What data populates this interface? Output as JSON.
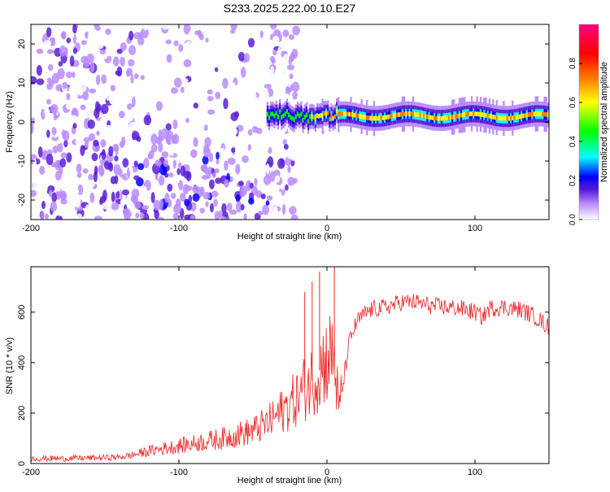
{
  "title": "S233.2025.222.00.10.E27",
  "chart_data": [
    {
      "type": "heatmap",
      "panel": "spectrogram",
      "xlabel": "Height of straight line (km)",
      "ylabel": "Frequency (Hz)",
      "xlim": [
        -200,
        150
      ],
      "ylim": [
        -25,
        25
      ],
      "xticks": [
        "-200",
        "-100",
        "0",
        "100"
      ],
      "yticks": [
        "20",
        "10",
        "0",
        "-10",
        "-20"
      ],
      "colorbar": {
        "label": "Normalized spectral amplitude",
        "range": [
          0,
          1
        ],
        "ticks": [
          "0.0",
          "0.2",
          "0.4",
          "0.6",
          "0.8"
        ],
        "colors": [
          "#ffffff",
          "#b98cff",
          "#5a1fd6",
          "#0000ff",
          "#00ffff",
          "#00ff00",
          "#ffff00",
          "#ff7f00",
          "#ff0000",
          "#ff0080"
        ]
      },
      "features": [
        {
          "name": "main tone",
          "x_range": [
            -40,
            150
          ],
          "frequency_hz": 1.5,
          "amplitude": 0.9
        },
        {
          "name": "broadband noise",
          "x_range": [
            -200,
            -20
          ],
          "frequency_range_hz": [
            -25,
            25
          ],
          "amplitude": 0.2
        }
      ]
    },
    {
      "type": "line",
      "panel": "snr",
      "xlabel": "Height of straight line (km)",
      "ylabel": "SNR (10 * v/v)",
      "xlim": [
        -200,
        150
      ],
      "ylim": [
        0,
        780
      ],
      "xticks": [
        "-200",
        "-100",
        "0",
        "100"
      ],
      "yticks": [
        "0",
        "200",
        "400",
        "600"
      ],
      "color": "#ee2222",
      "series": [
        {
          "name": "SNR",
          "x": [
            -200,
            -180,
            -160,
            -140,
            -130,
            -120,
            -110,
            -100,
            -90,
            -80,
            -70,
            -60,
            -50,
            -40,
            -30,
            -20,
            -15,
            -10,
            -5,
            0,
            5,
            8,
            10,
            15,
            20,
            25,
            30,
            40,
            50,
            60,
            70,
            80,
            90,
            100,
            105,
            110,
            120,
            130,
            140,
            150
          ],
          "y": [
            20,
            20,
            22,
            25,
            35,
            50,
            60,
            70,
            80,
            90,
            100,
            115,
            130,
            160,
            210,
            260,
            300,
            330,
            370,
            420,
            430,
            200,
            280,
            480,
            560,
            590,
            610,
            620,
            640,
            640,
            625,
            620,
            615,
            600,
            580,
            615,
            620,
            610,
            585,
            540
          ]
        }
      ],
      "spikes": [
        {
          "x": -15,
          "y": 680
        },
        {
          "x": -10,
          "y": 720
        },
        {
          "x": -5,
          "y": 760
        },
        {
          "x": 5,
          "y": 790
        }
      ]
    }
  ]
}
